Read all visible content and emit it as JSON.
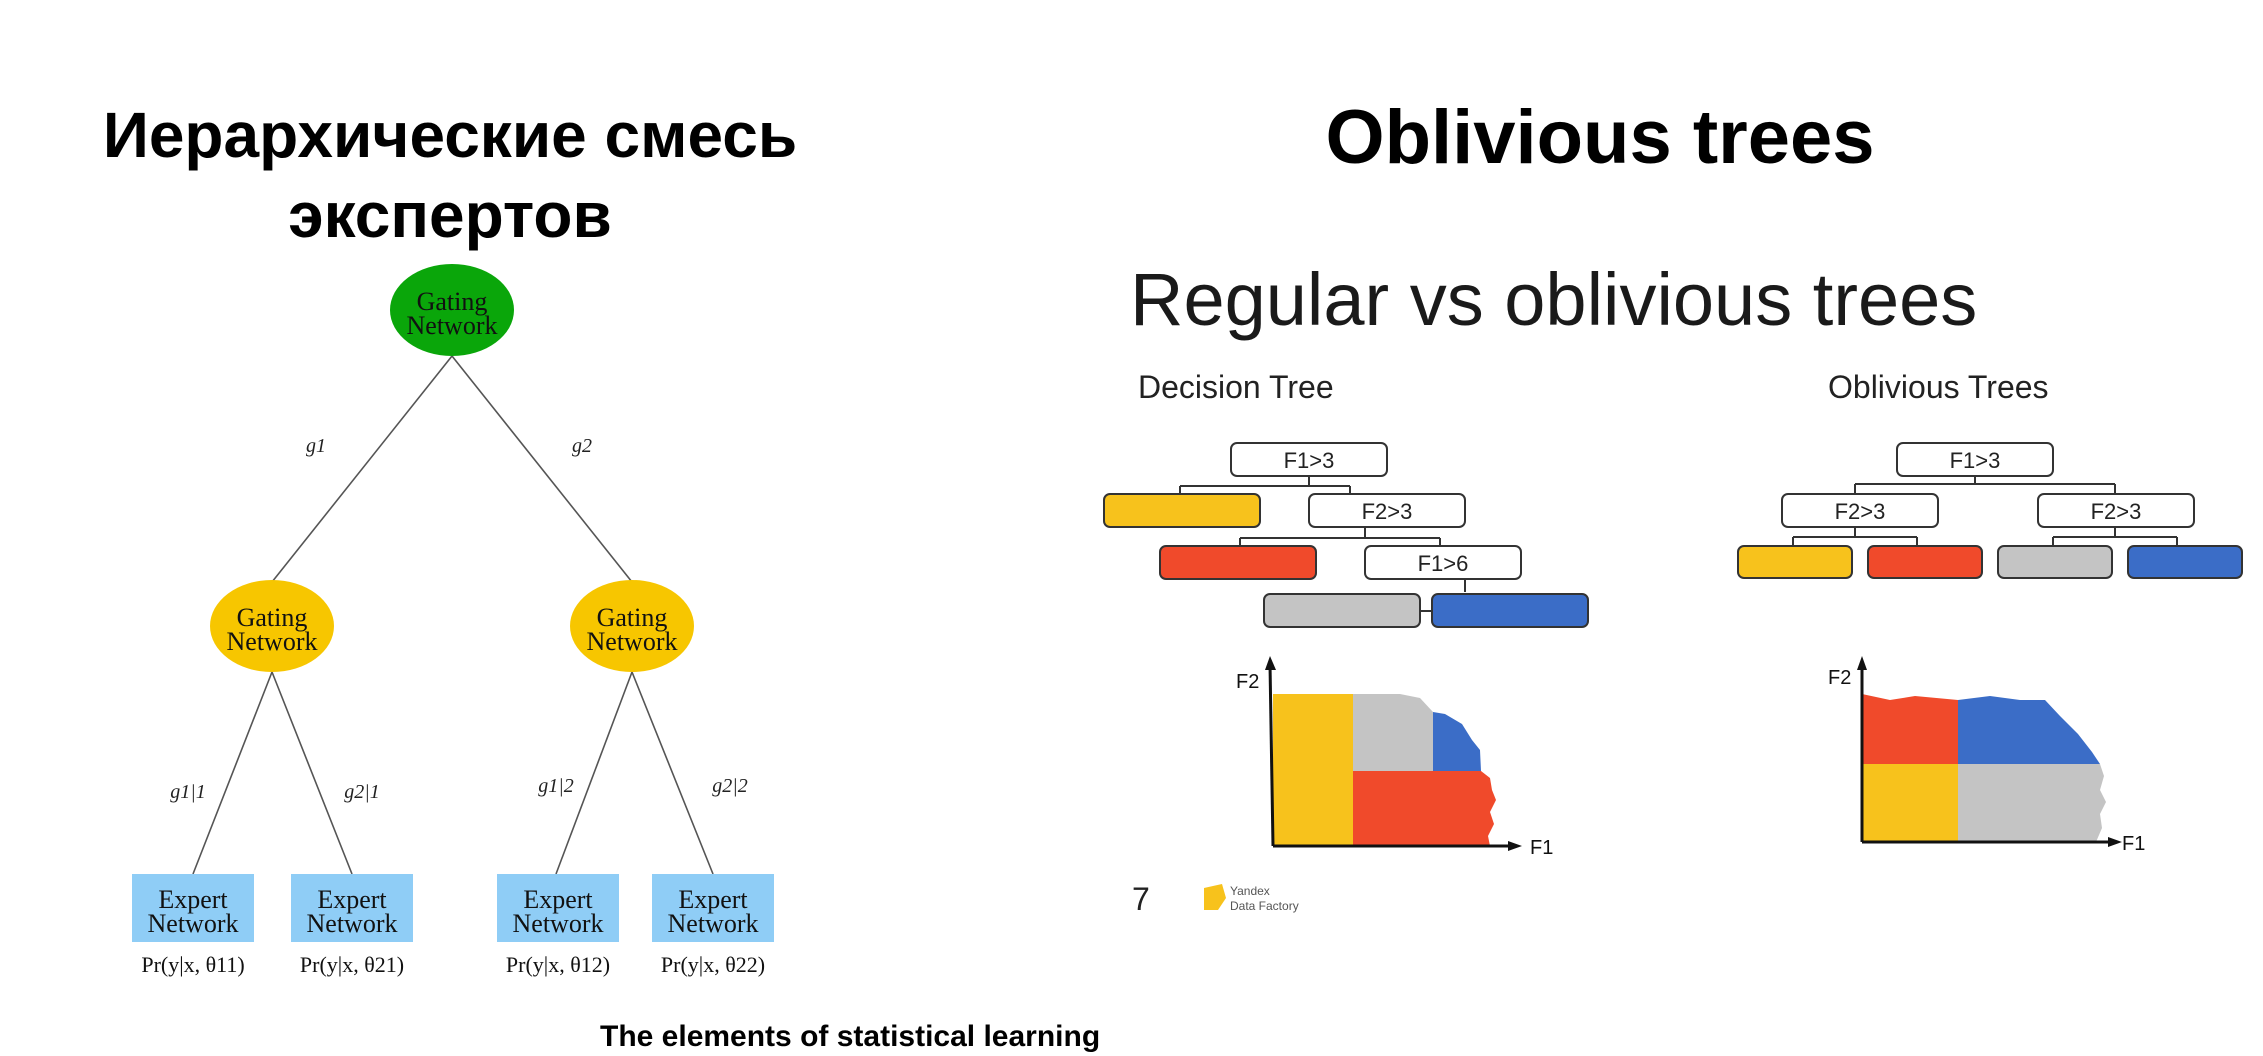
{
  "left": {
    "title_line1": "Иерархические смесь",
    "title_line2": "экспертов",
    "root": {
      "line1": "Gating",
      "line2": "Network",
      "color": "#0aa60a"
    },
    "gates": [
      {
        "line1": "Gating",
        "line2": "Network",
        "color": "#f7c600"
      },
      {
        "line1": "Gating",
        "line2": "Network",
        "color": "#f7c600"
      }
    ],
    "edge_labels_top": [
      "g1",
      "g2"
    ],
    "edge_labels_bottom": [
      "g1|1",
      "g2|1",
      "g1|2",
      "g2|2"
    ],
    "experts": [
      {
        "line1": "Expert",
        "line2": "Network",
        "prob": "Pr(y|x, θ11)"
      },
      {
        "line1": "Expert",
        "line2": "Network",
        "prob": "Pr(y|x, θ21)"
      },
      {
        "line1": "Expert",
        "line2": "Network",
        "prob": "Pr(y|x, θ12)"
      },
      {
        "line1": "Expert",
        "line2": "Network",
        "prob": "Pr(y|x, θ22)"
      }
    ],
    "expert_color": "#8fcdf6",
    "source": "The elements of statistical learning"
  },
  "right": {
    "title": "Oblivious trees",
    "slide_title": "Regular vs oblivious trees",
    "decision_tree": {
      "label": "Decision Tree",
      "nodes": [
        "F1>3",
        "F2>3",
        "F1>6"
      ],
      "axis_x": "F1",
      "axis_y": "F2"
    },
    "oblivious_tree": {
      "label": "Oblivious Trees",
      "nodes": [
        "F1>3",
        "F2>3",
        "F2>3"
      ],
      "axis_x": "F1",
      "axis_y": "F2"
    },
    "page_number": "7",
    "logo_line1": "Yandex",
    "logo_line2": "Data Factory",
    "colors": {
      "yellow": "#f7c21c",
      "red": "#f04a2b",
      "gray": "#c4c4c4",
      "blue": "#3b6dc7"
    }
  }
}
